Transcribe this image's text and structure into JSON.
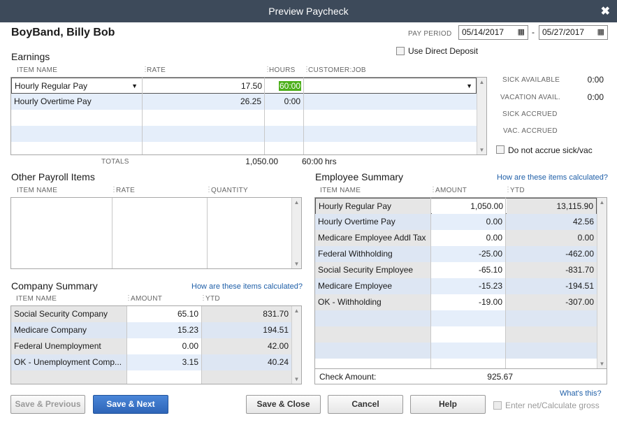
{
  "window": {
    "title": "Preview Paycheck",
    "close": "✖"
  },
  "employee": {
    "name": "BoyBand, Billy Bob"
  },
  "pay_period": {
    "label": "PAY PERIOD",
    "start": "05/14/2017",
    "dash": "-",
    "end": "05/27/2017"
  },
  "direct_deposit": {
    "label": "Use Direct Deposit"
  },
  "earnings": {
    "title": "Earnings",
    "headers": {
      "item": "ITEM NAME",
      "rate": "RATE",
      "hours": "HOURS",
      "job": "CUSTOMER:JOB"
    },
    "rows": [
      {
        "item": "Hourly Regular Pay",
        "rate": "17.50",
        "hours": "60:00",
        "job": ""
      },
      {
        "item": "Hourly Overtime Pay",
        "rate": "26.25",
        "hours": "0:00",
        "job": ""
      }
    ],
    "totals_label": "TOTALS",
    "totals_amount": "1,050.00",
    "totals_hours": "60:00",
    "totals_unit": "hrs"
  },
  "sick_vac": {
    "sick_available_label": "SICK AVAILABLE",
    "sick_available": "0:00",
    "vacation_avail_label": "VACATION AVAIL.",
    "vacation_avail": "0:00",
    "sick_accrued_label": "SICK ACCRUED",
    "vac_accrued_label": "VAC. ACCRUED",
    "do_not_accrue": "Do not accrue sick/vac"
  },
  "other_payroll": {
    "title": "Other Payroll Items",
    "headers": {
      "item": "ITEM NAME",
      "rate": "RATE",
      "quantity": "QUANTITY"
    }
  },
  "company_summary": {
    "title": "Company Summary",
    "link": "How are these items calculated?",
    "headers": {
      "item": "ITEM NAME",
      "amount": "AMOUNT",
      "ytd": "YTD"
    },
    "rows": [
      {
        "item": "Social Security Company",
        "amount": "65.10",
        "ytd": "831.70"
      },
      {
        "item": "Medicare Company",
        "amount": "15.23",
        "ytd": "194.51"
      },
      {
        "item": "Federal Unemployment",
        "amount": "0.00",
        "ytd": "42.00"
      },
      {
        "item": "OK - Unemployment Comp...",
        "amount": "3.15",
        "ytd": "40.24"
      }
    ]
  },
  "employee_summary": {
    "title": "Employee Summary",
    "link": "How are these items calculated?",
    "headers": {
      "item": "ITEM NAME",
      "amount": "AMOUNT",
      "ytd": "YTD"
    },
    "rows": [
      {
        "item": "Hourly Regular Pay",
        "amount": "1,050.00",
        "ytd": "13,115.90"
      },
      {
        "item": "Hourly Overtime Pay",
        "amount": "0.00",
        "ytd": "42.56"
      },
      {
        "item": "Medicare Employee Addl Tax",
        "amount": "0.00",
        "ytd": "0.00"
      },
      {
        "item": "Federal Withholding",
        "amount": "-25.00",
        "ytd": "-462.00"
      },
      {
        "item": "Social Security Employee",
        "amount": "-65.10",
        "ytd": "-831.70"
      },
      {
        "item": "Medicare Employee",
        "amount": "-15.23",
        "ytd": "-194.51"
      },
      {
        "item": "OK - Withholding",
        "amount": "-19.00",
        "ytd": "-307.00"
      }
    ],
    "check_amount_label": "Check Amount:",
    "check_amount": "925.67"
  },
  "whats_this": "What's this?",
  "buttons": {
    "save_previous": "Save & Previous",
    "save_next": "Save & Next",
    "save_close": "Save & Close",
    "cancel": "Cancel",
    "help": "Help"
  },
  "enter_net": "Enter net/Calculate gross",
  "colors": {
    "titlebar": "#3d4a5a",
    "row_alt": "#e5eefa",
    "primary": "#2e65b8",
    "highlight": "#4caf1a"
  }
}
